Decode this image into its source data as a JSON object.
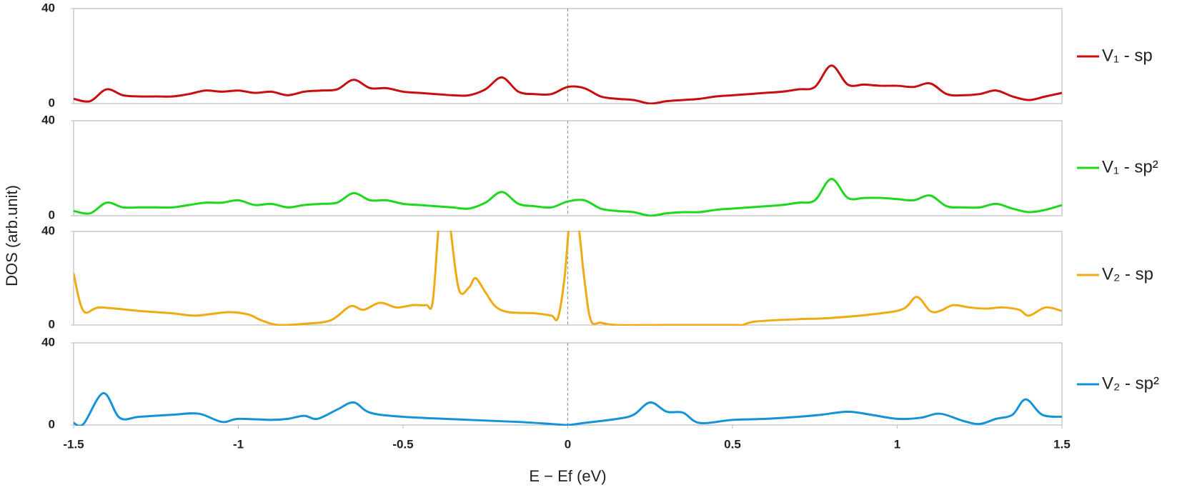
{
  "chart_data": [
    {
      "type": "line",
      "x": [
        -1.5,
        -1.45,
        -1.4,
        -1.35,
        -1.3,
        -1.25,
        -1.2,
        -1.15,
        -1.1,
        -1.05,
        -1,
        -0.95,
        -0.9,
        -0.85,
        -0.8,
        -0.75,
        -0.7,
        -0.65,
        -0.6,
        -0.55,
        -0.5,
        -0.45,
        -0.4,
        -0.35,
        -0.3,
        -0.25,
        -0.2,
        -0.15,
        -0.1,
        -0.05,
        0,
        0.05,
        0.1,
        0.15,
        0.2,
        0.25,
        0.3,
        0.35,
        0.4,
        0.45,
        0.5,
        0.55,
        0.6,
        0.65,
        0.7,
        0.75,
        0.8,
        0.85,
        0.9,
        0.95,
        1,
        1.05,
        1.1,
        1.15,
        1.2,
        1.25,
        1.3,
        1.35,
        1.4,
        1.45,
        1.5
      ],
      "series": [
        {
          "name": "V₁ - sp",
          "color": "#c80f0f",
          "values": [
            2,
            1,
            6,
            3.5,
            3,
            3,
            3,
            4,
            5.5,
            5,
            5.5,
            4.5,
            5,
            3.5,
            5,
            5.5,
            6,
            10,
            6.5,
            6.5,
            5,
            4.5,
            4,
            3.5,
            3.5,
            6,
            11,
            5,
            4,
            4,
            7,
            6.5,
            3,
            2,
            1.5,
            0,
            1,
            1.5,
            2,
            3,
            3.5,
            4,
            4.5,
            5,
            6,
            7,
            16,
            8,
            8,
            7.5,
            7.5,
            7,
            8.5,
            4,
            3.5,
            4,
            5.5,
            3,
            1.5,
            3,
            4.5
          ]
        }
      ],
      "xlim": [
        -1.5,
        1.5
      ],
      "ylim": [
        0,
        40
      ],
      "yticks": [
        0,
        40
      ],
      "vline": 0
    },
    {
      "type": "line",
      "x": [
        -1.5,
        -1.45,
        -1.4,
        -1.35,
        -1.3,
        -1.25,
        -1.2,
        -1.15,
        -1.1,
        -1.05,
        -1,
        -0.95,
        -0.9,
        -0.85,
        -0.8,
        -0.75,
        -0.7,
        -0.65,
        -0.6,
        -0.55,
        -0.5,
        -0.45,
        -0.4,
        -0.35,
        -0.3,
        -0.25,
        -0.2,
        -0.15,
        -0.1,
        -0.05,
        0,
        0.05,
        0.1,
        0.15,
        0.2,
        0.25,
        0.3,
        0.35,
        0.4,
        0.45,
        0.5,
        0.55,
        0.6,
        0.65,
        0.7,
        0.75,
        0.8,
        0.85,
        0.9,
        0.95,
        1,
        1.05,
        1.1,
        1.15,
        1.2,
        1.25,
        1.3,
        1.35,
        1.4,
        1.45,
        1.5
      ],
      "series": [
        {
          "name": "V₁  - sp²",
          "color": "#1ed81e",
          "values": [
            2,
            1,
            5.5,
            3.5,
            3.5,
            3.5,
            3.5,
            4.5,
            5.5,
            5.5,
            6.5,
            4.5,
            5,
            3.5,
            4.5,
            5,
            5.5,
            9.5,
            6.5,
            6.5,
            5,
            4.5,
            4,
            3.5,
            3,
            5.5,
            10,
            5,
            4,
            3.5,
            6,
            6.5,
            3,
            2,
            1.5,
            0,
            1,
            1.5,
            1.5,
            2.5,
            3,
            3.5,
            4,
            4.5,
            5.5,
            6.5,
            15.5,
            7.5,
            7.5,
            7.5,
            7,
            6.5,
            8.5,
            4,
            3.5,
            3.5,
            5,
            3,
            1.5,
            2.5,
            4.5
          ]
        }
      ],
      "xlim": [
        -1.5,
        1.5
      ],
      "ylim": [
        0,
        40
      ],
      "yticks": [
        0,
        40
      ],
      "vline": 0,
      "ylabel": "DOS (arb.unit)"
    },
    {
      "type": "line",
      "x": [
        -1.5,
        -1.47,
        -1.42,
        -1.3,
        -1.2,
        -1.13,
        -1.03,
        -0.97,
        -0.93,
        -0.88,
        -0.8,
        -0.72,
        -0.66,
        -0.62,
        -0.57,
        -0.52,
        -0.47,
        -0.43,
        -0.41,
        -0.39,
        -0.37,
        -0.355,
        -0.33,
        -0.3,
        -0.28,
        -0.25,
        -0.22,
        -0.18,
        -0.1,
        -0.05,
        -0.03,
        -0.01,
        0.01,
        0.03,
        0.05,
        0.07,
        0.1,
        0.15,
        0.3,
        0.5,
        0.53,
        0.57,
        0.7,
        0.8,
        0.95,
        1.02,
        1.06,
        1.1,
        1.13,
        1.17,
        1.22,
        1.27,
        1.32,
        1.37,
        1.4,
        1.45,
        1.5
      ],
      "series": [
        {
          "name": "V₂  - sp",
          "color": "#f0aa14",
          "values": [
            22,
            6,
            7.5,
            6,
            5,
            4,
            5.5,
            4.5,
            2,
            0,
            0.5,
            2,
            8,
            6.5,
            9.5,
            7.5,
            8.5,
            8.5,
            10,
            45,
            60,
            40,
            15,
            16,
            20,
            14,
            8,
            5.5,
            5,
            4,
            3,
            20,
            50,
            45,
            20,
            2,
            1,
            0,
            0,
            0,
            0,
            1.5,
            2.5,
            3,
            5,
            7,
            12,
            6,
            6,
            8.5,
            7.5,
            7,
            7.5,
            6.5,
            4,
            7.5,
            6
          ]
        }
      ],
      "xlim": [
        -1.5,
        1.5
      ],
      "ylim": [
        0,
        40
      ],
      "yticks": [
        0,
        40
      ],
      "vline": 0
    },
    {
      "type": "line",
      "x": [
        -1.5,
        -1.47,
        -1.41,
        -1.36,
        -1.3,
        -1.2,
        -1.12,
        -1.05,
        -1,
        -0.9,
        -0.85,
        -0.8,
        -0.76,
        -0.7,
        -0.65,
        -0.6,
        -0.5,
        -0.3,
        -0.15,
        -0.05,
        0,
        0.05,
        0.15,
        0.2,
        0.25,
        0.3,
        0.35,
        0.4,
        0.5,
        0.6,
        0.7,
        0.77,
        0.85,
        0.92,
        1,
        1.07,
        1.13,
        1.2,
        1.25,
        1.3,
        1.35,
        1.39,
        1.44,
        1.5
      ],
      "series": [
        {
          "name": "V₂  - sp²",
          "color": "#1494d6",
          "values": [
            1,
            0.5,
            15.5,
            3.5,
            4,
            5,
            5.5,
            1.5,
            3,
            2.5,
            3,
            4.5,
            3,
            7.5,
            11,
            6,
            4,
            2.5,
            1.5,
            0.5,
            0,
            1,
            3,
            5,
            11,
            6.5,
            6,
            1,
            2.5,
            3,
            4,
            5,
            6.5,
            5,
            3,
            3.5,
            5.5,
            2,
            0.5,
            3,
            5,
            12.5,
            5,
            4
          ]
        }
      ],
      "xlim": [
        -1.5,
        1.5
      ],
      "ylim": [
        0,
        40
      ],
      "yticks": [
        0,
        40
      ],
      "vline": 0,
      "xticks": [
        -1.5,
        -1,
        -0.5,
        0,
        0.5,
        1,
        1.5
      ],
      "xlabel": "E − Ef (eV)"
    }
  ]
}
